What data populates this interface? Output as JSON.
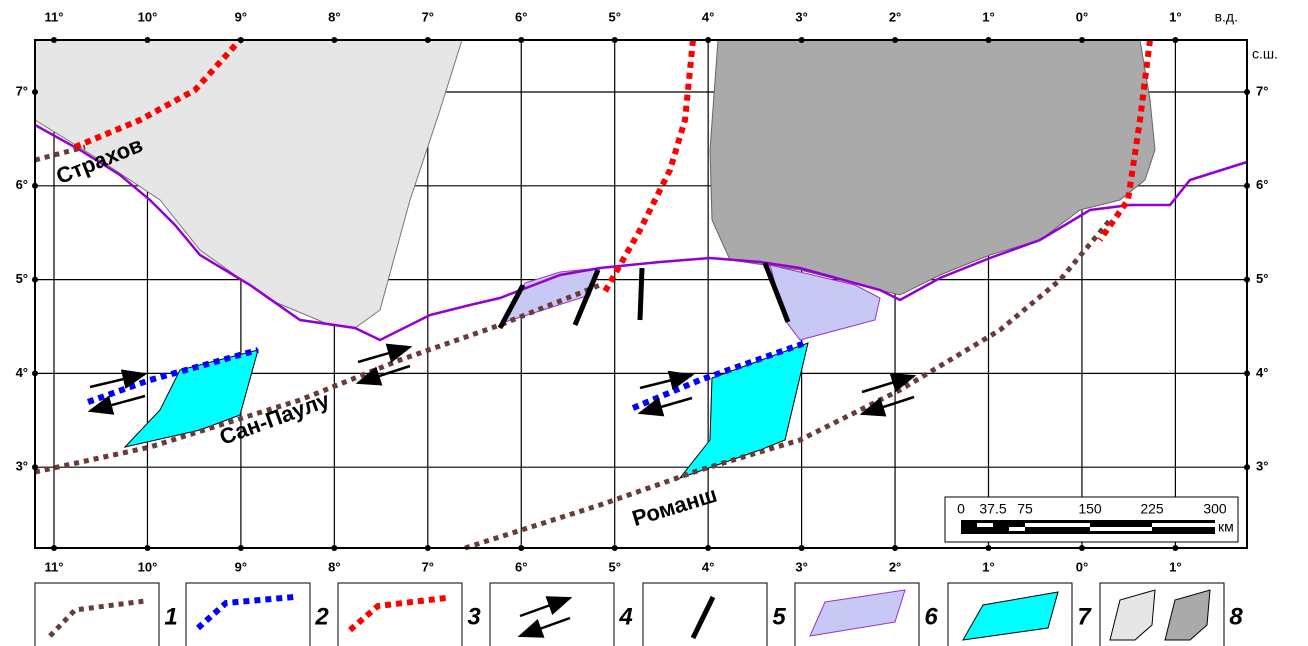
{
  "map": {
    "top_labels": [
      "11°",
      "10°",
      "9°",
      "8°",
      "7°",
      "6°",
      "5°",
      "4°",
      "3°",
      "2°",
      "1°",
      "0°",
      "1°"
    ],
    "bottom_labels": [
      "11°",
      "10°",
      "9°",
      "8°",
      "7°",
      "6°",
      "5°",
      "4°",
      "3°",
      "2°",
      "1°",
      "0°",
      "1°"
    ],
    "left_labels": [
      "7°",
      "6°",
      "5°",
      "4°",
      "3°"
    ],
    "right_labels": [
      "7°",
      "6°",
      "5°",
      "4°",
      "3°"
    ],
    "lon_unit": "в.д.",
    "lat_unit": "с.ш.",
    "faults": [
      "Страхов",
      "Сан-Паулу",
      "Романш"
    ],
    "scale": {
      "labels": [
        "0",
        "37.5",
        "75",
        "150",
        "225",
        "300"
      ],
      "unit": "км"
    },
    "legend": [
      "1",
      "2",
      "3",
      "4",
      "5",
      "6",
      "7",
      "8"
    ]
  }
}
